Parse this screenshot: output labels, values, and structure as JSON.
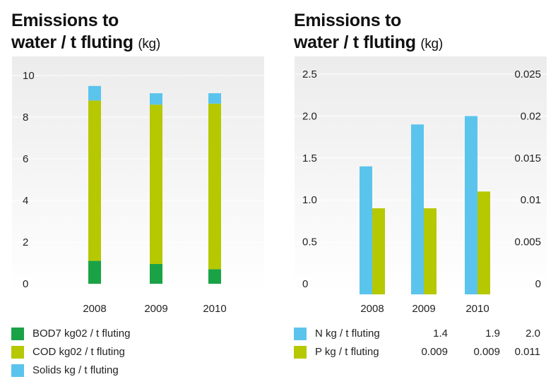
{
  "colors": {
    "bod7": "#1aa247",
    "cod": "#b5c800",
    "solids": "#5bc4ec",
    "n": "#5bc4ec",
    "p": "#b5c800",
    "plot_bg_top": "#ececec",
    "plot_bg_bottom": "#ffffff",
    "grid": "#ffffff",
    "tick_text": "#222222"
  },
  "chart_data": [
    {
      "type": "bar",
      "stacked": true,
      "title": "Emissions to water / t fluting",
      "title_line1": "Emissions to",
      "title_line2": "water / t fluting",
      "unit": "(kg)",
      "categories": [
        "2008",
        "2009",
        "2010"
      ],
      "ylim": [
        0,
        10
      ],
      "yticks": [
        0,
        2,
        4,
        6,
        8,
        10
      ],
      "ytick_labels": [
        "0",
        "2",
        "4",
        "6",
        "8",
        "10"
      ],
      "grid": true,
      "series": [
        {
          "name": "BOD7 kg02 / t fluting",
          "color_key": "bod7",
          "values": [
            1.1,
            0.95,
            0.7
          ]
        },
        {
          "name": "COD kg02 / t fluting",
          "color_key": "cod",
          "values": [
            7.7,
            7.65,
            7.95
          ]
        },
        {
          "name": "Solids kg / t fluting",
          "color_key": "solids",
          "values": [
            0.7,
            0.55,
            0.5
          ]
        }
      ]
    },
    {
      "type": "bar",
      "stacked": false,
      "title": "Emissions to water / t fluting",
      "title_line1": "Emissions to",
      "title_line2": "water / t fluting",
      "unit": "(kg)",
      "categories": [
        "2008",
        "2009",
        "2010"
      ],
      "ylim": [
        0,
        2.5
      ],
      "yticks": [
        0,
        0.5,
        1.0,
        1.5,
        2.0,
        2.5
      ],
      "ytick_labels": [
        "0",
        "0.5",
        "1.0",
        "1.5",
        "2.0",
        "2.5"
      ],
      "y2lim": [
        0,
        0.025
      ],
      "y2ticks": [
        0,
        0.005,
        0.01,
        0.015,
        0.02,
        0.025
      ],
      "y2tick_labels": [
        "0",
        "0.005",
        "0.01",
        "0.015",
        "0.02",
        "0.025"
      ],
      "grid": true,
      "series": [
        {
          "name": "N kg / t fluting",
          "color_key": "n",
          "axis": "left",
          "values": [
            1.4,
            1.9,
            2.0
          ],
          "table": [
            "1.4",
            "1.9",
            "2.0"
          ]
        },
        {
          "name": "P kg / t fluting",
          "color_key": "p",
          "axis": "right",
          "values": [
            0.009,
            0.009,
            0.011
          ],
          "table": [
            "0.009",
            "0.009",
            "0.011"
          ]
        }
      ]
    }
  ]
}
